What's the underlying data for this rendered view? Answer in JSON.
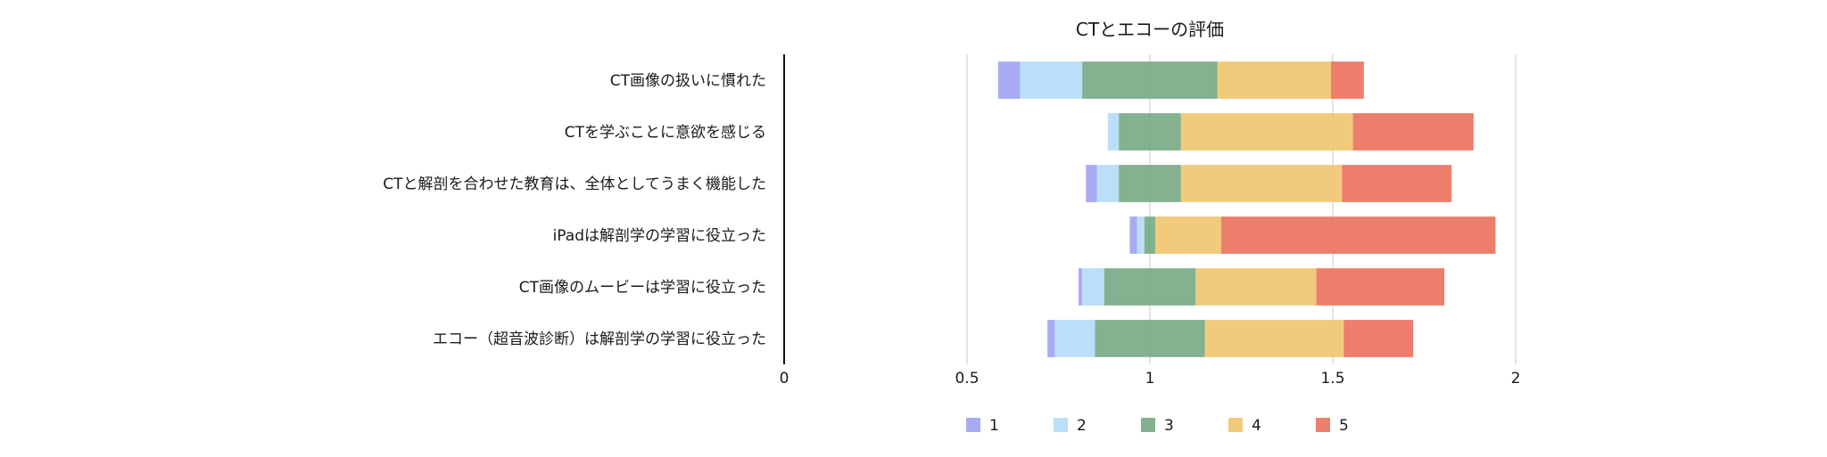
{
  "chart_data": {
    "type": "bar",
    "orientation": "horizontal",
    "stacking": "diverging",
    "diverging_center": 1,
    "title": "CTとエコーの評価",
    "xlabel": "",
    "ylabel": "",
    "categories": [
      "CT画像の扱いに慣れた",
      "CTを学ぶことに意欲を感じる",
      "CTと解剖を合わせた教育は、全体としてうまく機能した",
      "iPadは解剖学の学習に役立った",
      "CT画像のムービーは学習に役立った",
      "エコー（超音波診断）は解剖学の学習に役立った"
    ],
    "series": [
      {
        "name": "1",
        "color": "#9fa2f3",
        "values": [
          0.06,
          0.0,
          0.03,
          0.02,
          0.01,
          0.02
        ]
      },
      {
        "name": "2",
        "color": "#b2dcf7",
        "values": [
          0.17,
          0.03,
          0.06,
          0.02,
          0.06,
          0.11
        ]
      },
      {
        "name": "3",
        "color": "#77a884",
        "values": [
          0.37,
          0.17,
          0.17,
          0.03,
          0.25,
          0.3
        ]
      },
      {
        "name": "4",
        "color": "#f0c46e",
        "values": [
          0.31,
          0.47,
          0.44,
          0.18,
          0.33,
          0.38
        ]
      },
      {
        "name": "5",
        "color": "#eb705c",
        "values": [
          0.09,
          0.33,
          0.3,
          0.75,
          0.35,
          0.19
        ]
      }
    ],
    "xlim": [
      0,
      2
    ],
    "xticks": [
      0,
      0.5,
      1,
      1.5,
      2
    ],
    "xtick_labels": [
      "0",
      "0.5",
      "1",
      "1.5",
      "2"
    ],
    "grid": true,
    "legend": "bottom-center"
  }
}
